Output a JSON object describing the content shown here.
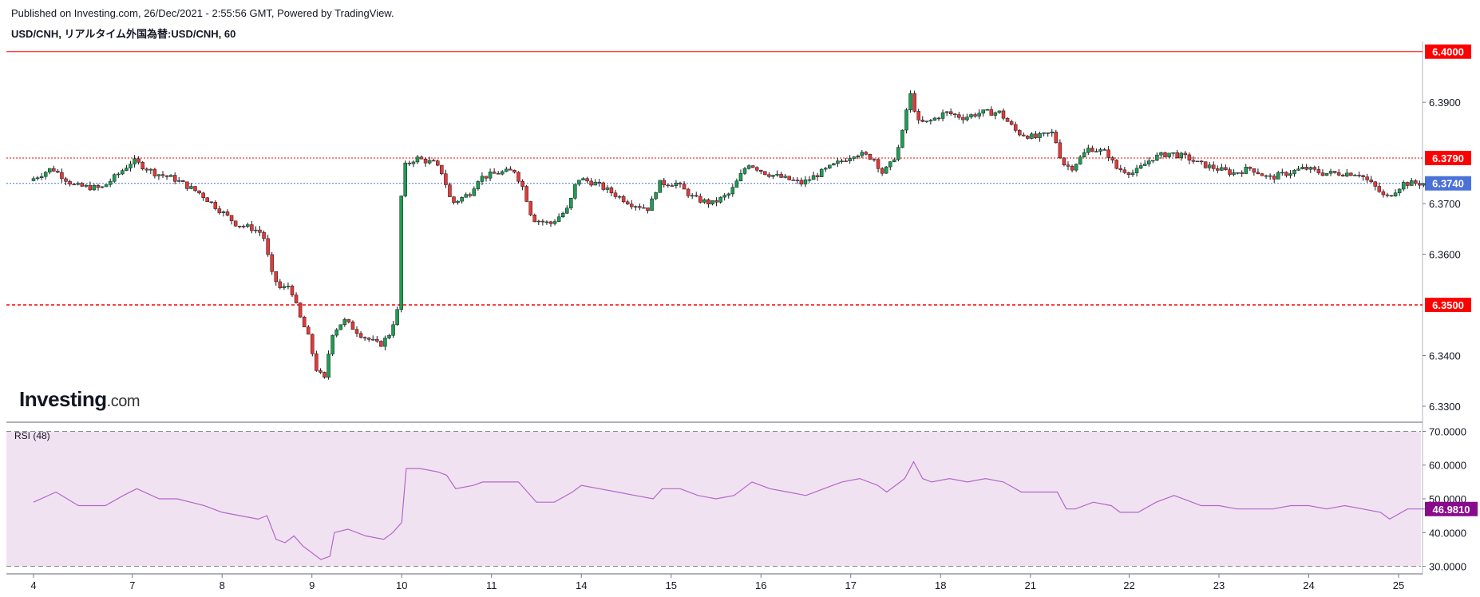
{
  "header": {
    "published": "Published on Investing.com, 26/Dec/2021 - 2:55:56 GMT, Powered by TradingView.",
    "symbol": "USD/CNH, リアルタイム外国為替:USD/CNH, 60"
  },
  "logo": {
    "brand": "Investing",
    "suffix": ".com"
  },
  "colors": {
    "up": "#26a69a",
    "up_fill": "#1e9e4f",
    "down": "#e53935",
    "wick": "#131722",
    "resistance": "#ff0000",
    "current": "#4b72d8",
    "rsi_line": "#b268c8",
    "rsi_band": "#f1e2f2",
    "rsi_tag": "#8a0a8c",
    "axis": "#787b86"
  },
  "chart_data": [
    {
      "type": "candlestick",
      "title": "USD/CNH, リアルタイム外国為替:USD/CNH, 60",
      "ylim": [
        6.327,
        6.402
      ],
      "y_ticks": [
        "6.3900",
        "6.3700",
        "6.3600",
        "6.3400",
        "6.3300"
      ],
      "x_ticks": [
        "4",
        "7",
        "8",
        "9",
        "10",
        "11",
        "14",
        "15",
        "16",
        "17",
        "18",
        "21",
        "22",
        "23",
        "24",
        "25"
      ],
      "x_tick_positions": [
        0.0,
        1.1,
        2.1,
        3.1,
        4.1,
        5.1,
        6.1,
        7.1,
        8.1,
        9.1,
        10.1,
        11.1,
        12.2,
        13.2,
        14.2,
        15.2
      ],
      "levels": [
        {
          "label": "6.4000",
          "value": 6.4,
          "style": "solid",
          "color": "#ff0000"
        },
        {
          "label": "6.3790",
          "value": 6.379,
          "style": "dotted",
          "color": "#ff0000"
        },
        {
          "label": "6.3740",
          "value": 6.374,
          "style": "dotted",
          "color": "#4b72d8"
        },
        {
          "label": "6.3500",
          "value": 6.35,
          "style": "dashed",
          "color": "#ff0000"
        }
      ],
      "close_path": [
        [
          0.0,
          6.3745
        ],
        [
          0.25,
          6.377
        ],
        [
          0.5,
          6.3735
        ],
        [
          0.8,
          6.373
        ],
        [
          1.0,
          6.376
        ],
        [
          1.15,
          6.3785
        ],
        [
          1.4,
          6.376
        ],
        [
          1.6,
          6.375
        ],
        [
          1.9,
          6.372
        ],
        [
          2.1,
          6.369
        ],
        [
          2.3,
          6.366
        ],
        [
          2.5,
          6.365
        ],
        [
          2.6,
          6.364
        ],
        [
          2.7,
          6.356
        ],
        [
          2.8,
          6.353
        ],
        [
          2.9,
          6.354
        ],
        [
          3.0,
          6.348
        ],
        [
          3.1,
          6.344
        ],
        [
          3.2,
          6.337
        ],
        [
          3.3,
          6.335
        ],
        [
          3.35,
          6.344
        ],
        [
          3.5,
          6.347
        ],
        [
          3.7,
          6.344
        ],
        [
          3.9,
          6.342
        ],
        [
          4.0,
          6.344
        ],
        [
          4.1,
          6.349
        ],
        [
          4.15,
          6.377
        ],
        [
          4.3,
          6.379
        ],
        [
          4.5,
          6.378
        ],
        [
          4.6,
          6.376
        ],
        [
          4.7,
          6.37
        ],
        [
          4.9,
          6.372
        ],
        [
          5.0,
          6.375
        ],
        [
          5.2,
          6.376
        ],
        [
          5.4,
          6.3765
        ],
        [
          5.5,
          6.373
        ],
        [
          5.6,
          6.367
        ],
        [
          5.8,
          6.366
        ],
        [
          6.0,
          6.369
        ],
        [
          6.1,
          6.375
        ],
        [
          6.3,
          6.374
        ],
        [
          6.5,
          6.372
        ],
        [
          6.7,
          6.37
        ],
        [
          6.9,
          6.369
        ],
        [
          7.0,
          6.374
        ],
        [
          7.2,
          6.374
        ],
        [
          7.4,
          6.371
        ],
        [
          7.6,
          6.37
        ],
        [
          7.8,
          6.372
        ],
        [
          7.9,
          6.375
        ],
        [
          8.0,
          6.378
        ],
        [
          8.2,
          6.376
        ],
        [
          8.4,
          6.375
        ],
        [
          8.6,
          6.374
        ],
        [
          8.8,
          6.376
        ],
        [
          9.0,
          6.378
        ],
        [
          9.2,
          6.38
        ],
        [
          9.4,
          6.379
        ],
        [
          9.5,
          6.376
        ],
        [
          9.6,
          6.378
        ],
        [
          9.7,
          6.382
        ],
        [
          9.8,
          6.392
        ],
        [
          9.9,
          6.386
        ],
        [
          10.0,
          6.386
        ],
        [
          10.2,
          6.388
        ],
        [
          10.4,
          6.387
        ],
        [
          10.6,
          6.388
        ],
        [
          10.8,
          6.388
        ],
        [
          11.0,
          6.384
        ],
        [
          11.2,
          6.383
        ],
        [
          11.4,
          6.384
        ],
        [
          11.5,
          6.378
        ],
        [
          11.6,
          6.377
        ],
        [
          11.8,
          6.381
        ],
        [
          12.0,
          6.38
        ],
        [
          12.1,
          6.377
        ],
        [
          12.3,
          6.376
        ],
        [
          12.5,
          6.379
        ],
        [
          12.7,
          6.38
        ],
        [
          12.9,
          6.379
        ],
        [
          13.0,
          6.378
        ],
        [
          13.2,
          6.377
        ],
        [
          13.4,
          6.376
        ],
        [
          13.6,
          6.377
        ],
        [
          13.8,
          6.375
        ],
        [
          14.0,
          6.376
        ],
        [
          14.2,
          6.377
        ],
        [
          14.4,
          6.376
        ],
        [
          14.6,
          6.376
        ],
        [
          14.8,
          6.376
        ],
        [
          15.0,
          6.373
        ],
        [
          15.1,
          6.371
        ],
        [
          15.3,
          6.374
        ],
        [
          15.5,
          6.374
        ]
      ]
    },
    {
      "type": "line",
      "title": "RSI (48)",
      "ylim": [
        28,
        72
      ],
      "y_ticks": [
        "70.0000",
        "60.0000",
        "50.0000",
        "40.0000",
        "30.0000"
      ],
      "band": [
        30,
        70
      ],
      "current_label": "46.9810",
      "current_value": 46.981,
      "x": [
        0.0,
        0.25,
        0.5,
        0.8,
        1.0,
        1.15,
        1.4,
        1.6,
        1.9,
        2.1,
        2.3,
        2.5,
        2.6,
        2.7,
        2.8,
        2.9,
        3.0,
        3.1,
        3.2,
        3.3,
        3.35,
        3.5,
        3.7,
        3.9,
        4.0,
        4.1,
        4.15,
        4.3,
        4.5,
        4.6,
        4.7,
        4.9,
        5.0,
        5.2,
        5.4,
        5.5,
        5.6,
        5.8,
        6.0,
        6.1,
        6.3,
        6.5,
        6.7,
        6.9,
        7.0,
        7.2,
        7.4,
        7.6,
        7.8,
        7.9,
        8.0,
        8.2,
        8.4,
        8.6,
        8.8,
        9.0,
        9.2,
        9.4,
        9.5,
        9.6,
        9.7,
        9.8,
        9.9,
        10.0,
        10.2,
        10.4,
        10.6,
        10.8,
        11.0,
        11.2,
        11.4,
        11.5,
        11.6,
        11.8,
        12.0,
        12.1,
        12.3,
        12.5,
        12.7,
        12.9,
        13.0,
        13.2,
        13.4,
        13.6,
        13.8,
        14.0,
        14.2,
        14.4,
        14.6,
        14.8,
        15.0,
        15.1,
        15.3,
        15.5
      ],
      "values": [
        49,
        52,
        48,
        48,
        51,
        53,
        50,
        50,
        48,
        46,
        45,
        44,
        45,
        38,
        37,
        39,
        36,
        34,
        32,
        33,
        40,
        41,
        39,
        38,
        40,
        43,
        59,
        59,
        58,
        57,
        53,
        54,
        55,
        55,
        55,
        52,
        49,
        49,
        52,
        54,
        53,
        52,
        51,
        50,
        53,
        53,
        51,
        50,
        51,
        53,
        55,
        53,
        52,
        51,
        53,
        55,
        56,
        54,
        52,
        54,
        56,
        61,
        56,
        55,
        56,
        55,
        56,
        55,
        52,
        52,
        52,
        47,
        47,
        49,
        48,
        46,
        46,
        49,
        51,
        49,
        48,
        48,
        47,
        47,
        47,
        48,
        48,
        47,
        48,
        47,
        46,
        44,
        47,
        47
      ]
    }
  ]
}
